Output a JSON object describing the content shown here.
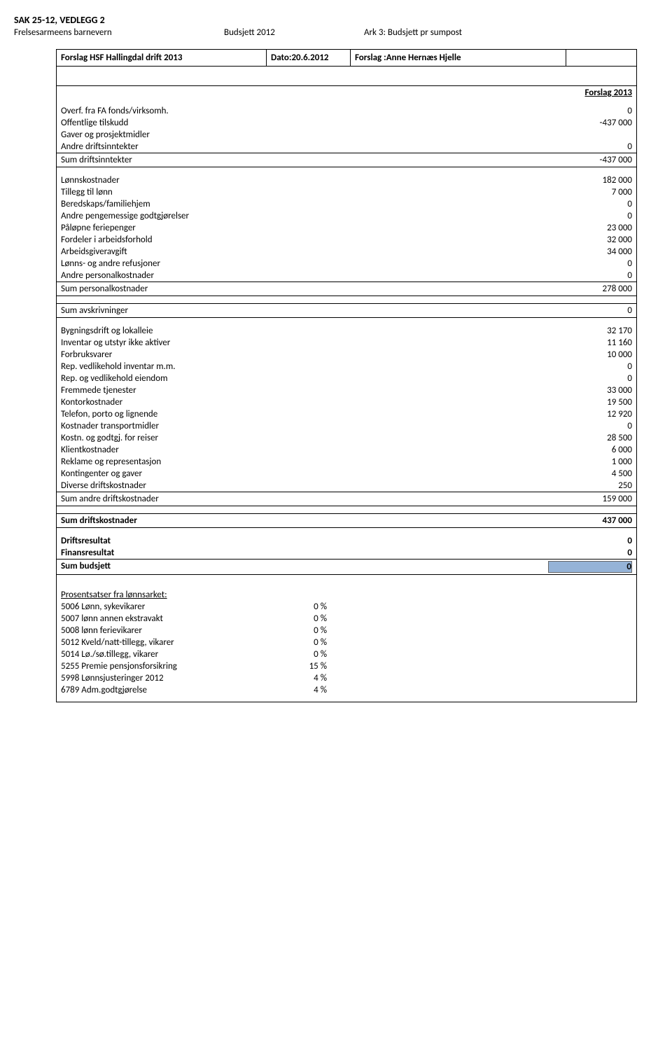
{
  "header": {
    "title": "SAK 25-12, VEDLEGG 2",
    "org": "Frelsesarmeens barnevern",
    "doc": "Budsjett 2012",
    "sheet": "Ark 3: Budsjett pr sumpost"
  },
  "title_box": {
    "c1": "Forslag HSF Hallingdal drift 2013",
    "c2": "Dato:20.6.2012",
    "c3": "Forslag :Anne Hernæs Hjelle",
    "right_header": "Forslag 2013"
  },
  "income": [
    {
      "label": "Overf. fra FA fonds/virksomh.",
      "value": "0"
    },
    {
      "label": "Offentlige tilskudd",
      "value": "-437 000"
    },
    {
      "label": "Gaver og prosjektmidler",
      "value": ""
    },
    {
      "label": "Andre driftsinntekter",
      "value": "0"
    }
  ],
  "income_sum": {
    "label": "Sum driftsinntekter",
    "value": "-437 000"
  },
  "personnel": [
    {
      "label": "Lønnskostnader",
      "value": "182 000"
    },
    {
      "label": "Tillegg til lønn",
      "value": "7 000"
    },
    {
      "label": "Beredskaps/familiehjem",
      "value": "0"
    },
    {
      "label": "Andre pengemessige godtgjørelser",
      "value": "0"
    },
    {
      "label": "Påløpne feriepenger",
      "value": "23 000"
    },
    {
      "label": "Fordeler i arbeidsforhold",
      "value": "32 000"
    },
    {
      "label": "Arbeidsgiveravgift",
      "value": "34 000"
    },
    {
      "label": "Lønns- og andre refusjoner",
      "value": "0"
    },
    {
      "label": "Andre personalkostnader",
      "value": "0"
    }
  ],
  "personnel_sum": {
    "label": "Sum personalkostnader",
    "value": "278 000"
  },
  "avskriv_sum": {
    "label": "Sum avskrivninger",
    "value": "0"
  },
  "other": [
    {
      "label": "Bygningsdrift og lokalleie",
      "value": "32 170"
    },
    {
      "label": "Inventar og utstyr ikke aktiver",
      "value": "11 160"
    },
    {
      "label": "Forbruksvarer",
      "value": "10 000"
    },
    {
      "label": "Rep. vedlikehold inventar m.m.",
      "value": "0"
    },
    {
      "label": "Rep. og vedlikehold eiendom",
      "value": "0"
    },
    {
      "label": "Fremmede tjenester",
      "value": "33 000"
    },
    {
      "label": "Kontorkostnader",
      "value": "19 500"
    },
    {
      "label": "Telefon, porto og lignende",
      "value": "12 920"
    },
    {
      "label": "Kostnader transportmidler",
      "value": "0"
    },
    {
      "label": "Kostn. og godtgj. for reiser",
      "value": "28 500"
    },
    {
      "label": "Klientkostnader",
      "value": "6 000"
    },
    {
      "label": "Reklame og representasjon",
      "value": "1 000"
    },
    {
      "label": "Kontingenter og gaver",
      "value": "4 500"
    },
    {
      "label": "Diverse driftskostnader",
      "value": "250"
    }
  ],
  "other_sum": {
    "label": "Sum andre driftskostnader",
    "value": "159 000"
  },
  "drift_sum": {
    "label": "Sum driftskostnader",
    "value": "437 000"
  },
  "results": [
    {
      "label": "Driftsresultat",
      "value": "0",
      "bold": true
    },
    {
      "label": "Finansresultat",
      "value": "0",
      "bold": true
    }
  ],
  "budget_sum": {
    "label": "Sum budsjett",
    "value": "0"
  },
  "percent_header": "Prosentsatser fra lønnsarket:",
  "percents": [
    {
      "label": "5006 Lønn, sykevikarer",
      "value": "0 %"
    },
    {
      "label": "5007 lønn annen ekstravakt",
      "value": "0 %"
    },
    {
      "label": "5008 lønn ferievikarer",
      "value": "0 %"
    },
    {
      "label": "5012 Kveld/natt-tillegg, vikarer",
      "value": "0 %"
    },
    {
      "label": "5014 Lø./sø.tillegg, vikarer",
      "value": "0 %"
    },
    {
      "label": "5255 Premie pensjonsforsikring",
      "value": "15 %"
    },
    {
      "label": "5998 Lønnsjusteringer 2012",
      "value": "4 %"
    },
    {
      "label": "6789 Adm.godtgjørelse",
      "value": "4 %"
    }
  ]
}
